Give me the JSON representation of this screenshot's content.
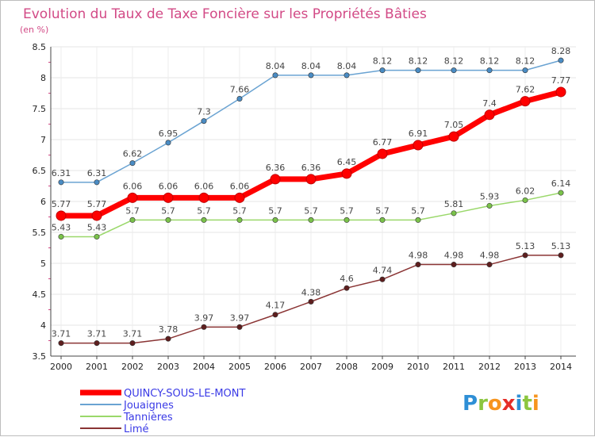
{
  "chart_data": {
    "type": "line",
    "title": "Evolution du Taux de Taxe Foncière sur les Propriétés Bâties",
    "subtitle": "(en %)",
    "xlabel": "",
    "ylabel": "",
    "ylim": [
      3.5,
      8.5
    ],
    "yticks": [
      "3.5",
      "4",
      "4.5",
      "5",
      "5.5",
      "6",
      "6.5",
      "7",
      "7.5",
      "8",
      "8.5"
    ],
    "categories": [
      "2000",
      "2001",
      "2002",
      "2003",
      "2004",
      "2005",
      "2006",
      "2007",
      "2008",
      "2009",
      "2010",
      "2011",
      "2012",
      "2013",
      "2014"
    ],
    "grid": "horizontal",
    "legend_position": "bottom-left",
    "series": [
      {
        "name": "Jouaignes",
        "color": "#6aa3d2",
        "marker_color": "#4a8cc4",
        "values": [
          6.31,
          6.31,
          6.62,
          6.95,
          7.3,
          7.66,
          8.04,
          8.04,
          8.04,
          8.12,
          8.12,
          8.12,
          8.12,
          8.12,
          8.28
        ],
        "labels": [
          "6.31",
          "6.31",
          "6.62",
          "6.95",
          "7.3",
          "7.66",
          "8.04",
          "8.04",
          "8.04",
          "8.12",
          "8.12",
          "8.12",
          "8.12",
          "8.12",
          "8.28"
        ]
      },
      {
        "name": "Tannières",
        "color": "#9ad86a",
        "marker_color": "#7ac24a",
        "values": [
          5.43,
          5.43,
          5.7,
          5.7,
          5.7,
          5.7,
          5.7,
          5.7,
          5.7,
          5.7,
          5.7,
          5.81,
          5.93,
          6.02,
          6.14
        ],
        "labels": [
          "5.43",
          "5.43",
          "5.7",
          "5.7",
          "5.7",
          "5.7",
          "5.7",
          "5.7",
          "5.7",
          "5.7",
          "5.7",
          "5.81",
          "5.93",
          "6.02",
          "6.14"
        ]
      },
      {
        "name": "Limé",
        "color": "#8a3434",
        "marker_color": "#5e1e1e",
        "values": [
          3.71,
          3.71,
          3.71,
          3.78,
          3.97,
          3.97,
          4.17,
          4.38,
          4.6,
          4.74,
          4.98,
          4.98,
          4.98,
          5.13,
          5.13
        ],
        "labels": [
          "3.71",
          "3.71",
          "3.71",
          "3.78",
          "3.97",
          "3.97",
          "4.17",
          "4.38",
          "4.6",
          "4.74",
          "4.98",
          "4.98",
          "4.98",
          "5.13",
          "5.13"
        ]
      },
      {
        "name": "QUINCY-SOUS-LE-MONT",
        "color": "#ff0000",
        "marker_color": "#ff0000",
        "highlight": true,
        "values": [
          5.77,
          5.77,
          6.06,
          6.06,
          6.06,
          6.06,
          6.36,
          6.36,
          6.45,
          6.77,
          6.91,
          7.05,
          7.4,
          7.62,
          7.77
        ],
        "labels": [
          "5.77",
          "5.77",
          "6.06",
          "6.06",
          "6.06",
          "6.06",
          "6.36",
          "6.36",
          "6.45",
          "6.77",
          "6.91",
          "7.05",
          "7.4",
          "7.62",
          "7.77"
        ]
      }
    ],
    "legend": [
      "QUINCY-SOUS-LE-MONT",
      "Jouaignes",
      "Tannières",
      "Limé"
    ]
  },
  "logo": {
    "letters": [
      "P",
      "r",
      "o",
      "x",
      "i",
      "t",
      "i"
    ],
    "colors": [
      "#2e8fd6",
      "#8cc63f",
      "#f7941d",
      "#e52d27",
      "#2e8fd6",
      "#8cc63f",
      "#f7941d"
    ]
  }
}
